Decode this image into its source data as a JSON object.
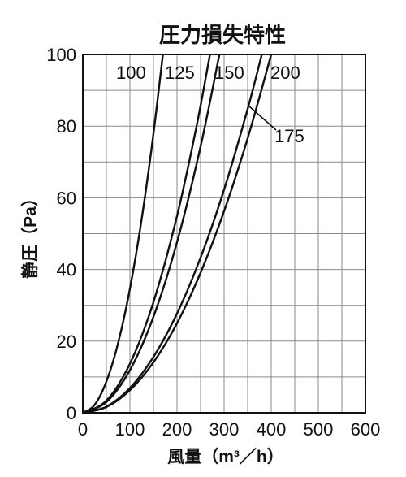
{
  "chart_data": {
    "type": "line",
    "title": "圧力損失特性",
    "xlabel": "風量（m³／h）",
    "ylabel": "静圧（Pa）",
    "xlim": [
      0,
      600
    ],
    "ylim": [
      0,
      100
    ],
    "x_ticks": [
      "0",
      "100",
      "200",
      "300",
      "400",
      "500",
      "600"
    ],
    "y_ticks": [
      "0",
      "20",
      "40",
      "60",
      "80",
      "100"
    ],
    "grid": true,
    "series": [
      {
        "name": "100",
        "x": [
          0,
          25,
          50,
          75,
          100,
          125,
          150,
          170
        ],
        "y": [
          0,
          2.2,
          8.7,
          19.5,
          34.6,
          54.1,
          77.9,
          100
        ]
      },
      {
        "name": "125",
        "x": [
          0,
          50,
          100,
          150,
          200,
          240,
          270
        ],
        "y": [
          0,
          3.4,
          13.7,
          30.9,
          54.9,
          79.0,
          100
        ]
      },
      {
        "name": "150",
        "x": [
          0,
          50,
          100,
          150,
          200,
          250,
          290
        ],
        "y": [
          0,
          3.0,
          11.9,
          26.8,
          47.6,
          74.3,
          100
        ]
      },
      {
        "name": "175",
        "x": [
          0,
          50,
          100,
          150,
          200,
          250,
          300,
          350,
          380
        ],
        "y": [
          0,
          1.7,
          6.9,
          15.6,
          27.7,
          43.3,
          62.3,
          84.8,
          100
        ]
      },
      {
        "name": "200",
        "x": [
          0,
          50,
          100,
          150,
          200,
          250,
          300,
          350,
          400
        ],
        "y": [
          0,
          1.6,
          6.3,
          14.1,
          25.0,
          39.1,
          56.3,
          76.6,
          100
        ]
      }
    ]
  }
}
